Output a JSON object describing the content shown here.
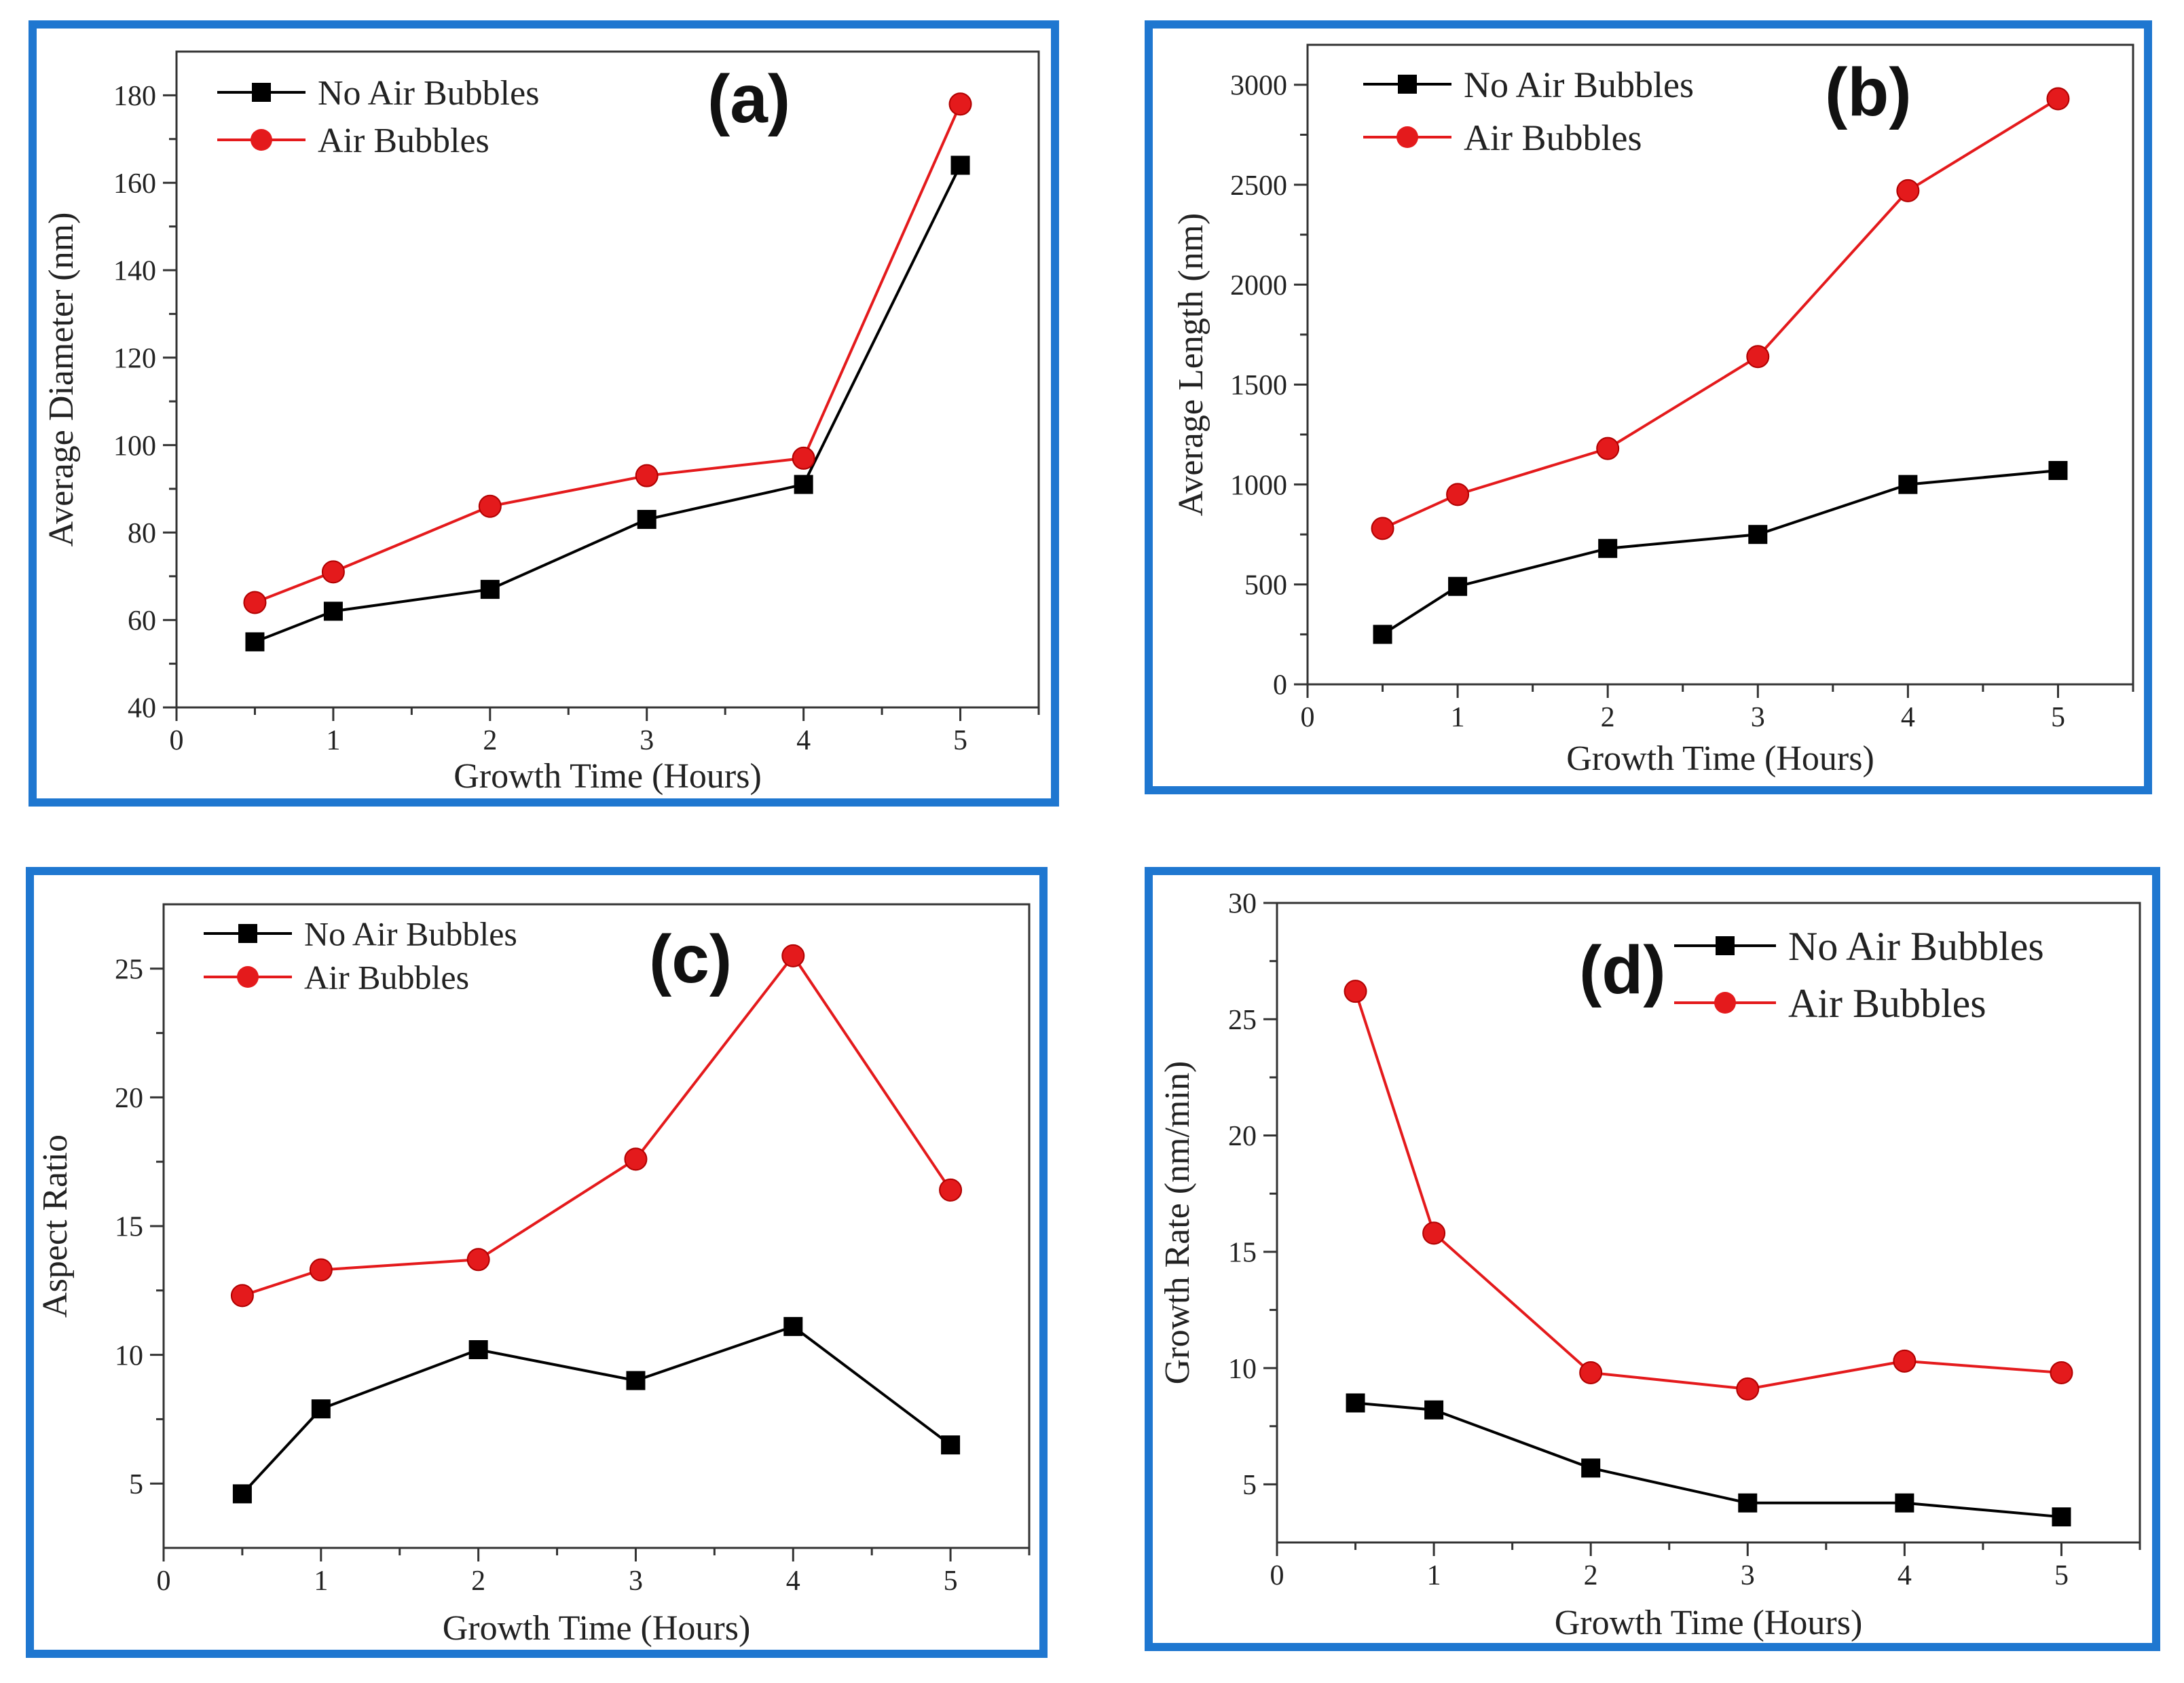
{
  "frame_color": "#1f77d0",
  "series_colors": {
    "no_air": "#000000",
    "air": "#e41a1c"
  },
  "chart_data": [
    {
      "type": "line",
      "panel_label": "(a)",
      "xlabel": "Growth Time (Hours)",
      "ylabel": "Average Diameter (nm)",
      "xlim": [
        0,
        5.5
      ],
      "ylim": [
        40,
        190
      ],
      "xticks": [
        0,
        1,
        2,
        3,
        4,
        5
      ],
      "yticks": [
        40,
        60,
        80,
        100,
        120,
        140,
        160,
        180
      ],
      "x": [
        0.5,
        1,
        2,
        3,
        4,
        5
      ],
      "series": [
        {
          "name": "No Air Bubbles",
          "marker": "square",
          "values": [
            55,
            62,
            67,
            83,
            91,
            164
          ]
        },
        {
          "name": "Air Bubbles",
          "marker": "circle",
          "values": [
            64,
            71,
            86,
            93,
            97,
            178
          ]
        }
      ]
    },
    {
      "type": "line",
      "panel_label": "(b)",
      "xlabel": "Growth Time (Hours)",
      "ylabel": "Average Length (nm)",
      "xlim": [
        0,
        5.5
      ],
      "ylim": [
        0,
        3200
      ],
      "xticks": [
        0,
        1,
        2,
        3,
        4,
        5
      ],
      "yticks": [
        0,
        500,
        1000,
        1500,
        2000,
        2500,
        3000
      ],
      "x": [
        0.5,
        1,
        2,
        3,
        4,
        5
      ],
      "series": [
        {
          "name": "No Air Bubbles",
          "marker": "square",
          "values": [
            250,
            490,
            680,
            750,
            1000,
            1070
          ]
        },
        {
          "name": "Air Bubbles",
          "marker": "circle",
          "values": [
            780,
            950,
            1180,
            1640,
            2470,
            2930
          ]
        }
      ]
    },
    {
      "type": "line",
      "panel_label": "(c)",
      "xlabel": "Growth Time (Hours)",
      "ylabel": "Aspect Ratio",
      "xlim": [
        0,
        5.5
      ],
      "ylim": [
        2.5,
        27.5
      ],
      "xticks": [
        0,
        1,
        2,
        3,
        4,
        5
      ],
      "yticks": [
        5,
        10,
        15,
        20,
        25
      ],
      "x": [
        0.5,
        1,
        2,
        3,
        4,
        5
      ],
      "series": [
        {
          "name": "No Air Bubbles",
          "marker": "square",
          "values": [
            4.6,
            7.9,
            10.2,
            9.0,
            11.1,
            6.5
          ]
        },
        {
          "name": "Air Bubbles",
          "marker": "circle",
          "values": [
            12.3,
            13.3,
            13.7,
            17.6,
            25.5,
            16.4
          ]
        }
      ]
    },
    {
      "type": "line",
      "panel_label": "(d)",
      "xlabel": "Growth Time (Hours)",
      "ylabel": "Growth Rate (nm/min)",
      "xlim": [
        0,
        5.5
      ],
      "ylim": [
        2.5,
        30
      ],
      "xticks": [
        0,
        1,
        2,
        3,
        4,
        5
      ],
      "yticks": [
        5,
        10,
        15,
        20,
        25,
        30
      ],
      "x": [
        0.5,
        1,
        2,
        3,
        4,
        5
      ],
      "series": [
        {
          "name": "No Air Bubbles",
          "marker": "square",
          "values": [
            8.5,
            8.2,
            5.7,
            4.2,
            4.2,
            3.6
          ]
        },
        {
          "name": "Air Bubbles",
          "marker": "circle",
          "values": [
            26.2,
            15.8,
            9.8,
            9.1,
            10.3,
            9.8
          ]
        }
      ]
    }
  ]
}
